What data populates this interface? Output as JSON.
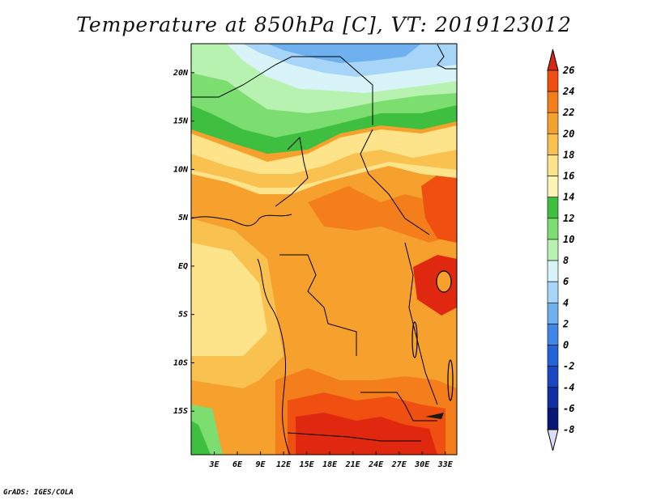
{
  "title": "Temperature at 850hPa [C], VT: 2019123012",
  "credit": "GrADS: IGES/COLA",
  "map": {
    "lon_range": [
      0,
      34.5
    ],
    "lat_range": [
      -19.5,
      23
    ],
    "x_ticks": [
      {
        "value": 3,
        "label": "3E"
      },
      {
        "value": 6,
        "label": "6E"
      },
      {
        "value": 9,
        "label": "9E"
      },
      {
        "value": 12,
        "label": "12E"
      },
      {
        "value": 15,
        "label": "15E"
      },
      {
        "value": 18,
        "label": "18E"
      },
      {
        "value": 21,
        "label": "21E"
      },
      {
        "value": 24,
        "label": "24E"
      },
      {
        "value": 27,
        "label": "27E"
      },
      {
        "value": 30,
        "label": "30E"
      },
      {
        "value": 33,
        "label": "33E"
      }
    ],
    "y_ticks": [
      {
        "value": 20,
        "label": "20N"
      },
      {
        "value": 15,
        "label": "15N"
      },
      {
        "value": 10,
        "label": "10N"
      },
      {
        "value": 5,
        "label": "5N"
      },
      {
        "value": 0,
        "label": "EQ"
      },
      {
        "value": -5,
        "label": "5S"
      },
      {
        "value": -10,
        "label": "10S"
      },
      {
        "value": -15,
        "label": "15S"
      }
    ]
  },
  "colorbar": {
    "levels": [
      {
        "label": "26",
        "color": "#e02810"
      },
      {
        "label": "24",
        "color": "#ef4f10"
      },
      {
        "label": "22",
        "color": "#f57e1c"
      },
      {
        "label": "20",
        "color": "#f6a02e"
      },
      {
        "label": "18",
        "color": "#f8c150"
      },
      {
        "label": "16",
        "color": "#fde48a"
      },
      {
        "label": "14",
        "color": "#fdf5b7"
      },
      {
        "label": "12",
        "color": "#3fbf3f"
      },
      {
        "label": "10",
        "color": "#7cdd70"
      },
      {
        "label": "8",
        "color": "#b7f2b0"
      },
      {
        "label": "6",
        "color": "#d8f4f8"
      },
      {
        "label": "4",
        "color": "#a6d5f7"
      },
      {
        "label": "2",
        "color": "#6fb0ee"
      },
      {
        "label": "0",
        "color": "#3f86e6"
      },
      {
        "label": "-2",
        "color": "#2462d7"
      },
      {
        "label": "-4",
        "color": "#1a47c1"
      },
      {
        "label": "-6",
        "color": "#0f2fa3"
      },
      {
        "label": "-8",
        "color": "#081678"
      }
    ],
    "top_color": "#d62a10",
    "bottom_color": "#dcdcf5"
  }
}
